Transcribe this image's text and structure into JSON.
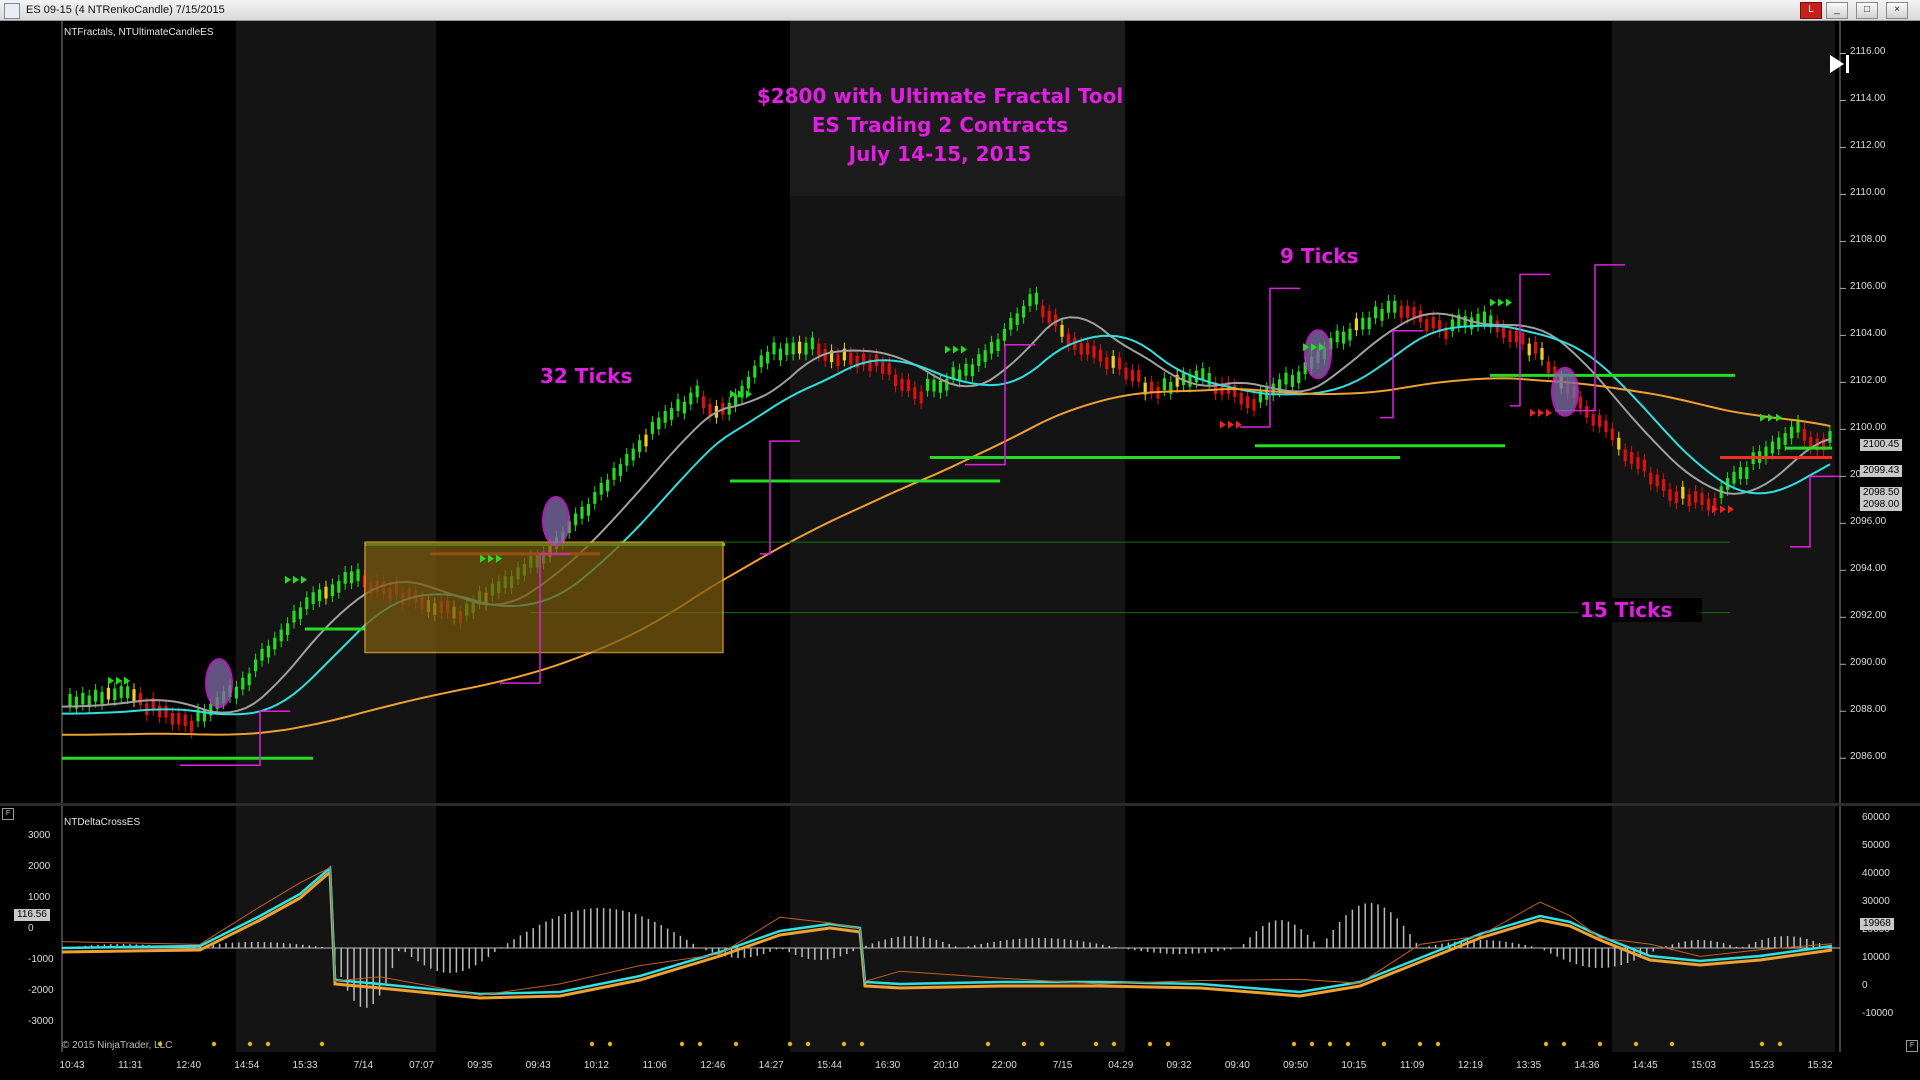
{
  "window": {
    "title": "ES 09-15 (4 NTRenkoCandle)  7/15/2015",
    "buttons": [
      "L",
      "_",
      "□",
      "×"
    ]
  },
  "price_panel": {
    "indicator_label": "NTFractals, NTUltimateCandleES",
    "headline": [
      "$2800 with Ultimate Fractal Tool",
      "ES Trading 2 Contracts",
      "July 14-15, 2015"
    ],
    "annotations": {
      "ticks_32": "32 Ticks",
      "ticks_9": "9 Ticks",
      "ticks_15": "15 Ticks"
    },
    "price_axis": [
      "2116.00",
      "2114.00",
      "2112.00",
      "2110.00",
      "2108.00",
      "2106.00",
      "2104.00",
      "2102.00",
      "2100.00",
      "2098.00",
      "2096.00",
      "2094.00",
      "2092.00",
      "2090.00",
      "2088.00",
      "2086.00"
    ],
    "price_tags": [
      {
        "label": "2100.45",
        "bg": "#c8c8c8",
        "fg": "#000000"
      },
      {
        "label": "2099.43",
        "bg": "#c8c8c8",
        "fg": "#000000"
      },
      {
        "label": "2098.50",
        "bg": "#c8c8c8",
        "fg": "#000000"
      },
      {
        "label": "2098.00",
        "bg": "#c8c8c8",
        "fg": "#000000"
      }
    ],
    "colors": {
      "up_candle": "#22dd22",
      "down_candle": "#dd1111",
      "neutral_candle": "#f0d020",
      "cyan_line": "#30e0e0",
      "orange_line": "#f0a030",
      "gray_line": "#a0a0a0",
      "support_line": "#22dd22",
      "resistance_line": "#ee3322",
      "fractal_line": "#e020e0",
      "box_fill": "#7a5a10",
      "box_border": "#f0b030"
    }
  },
  "indicator_panel": {
    "label": "NTDeltaCrossES",
    "left_axis": [
      "3000",
      "2000",
      "1000",
      "0",
      "-1000",
      "-2000",
      "-3000"
    ],
    "left_tag": "116.56",
    "right_axis": [
      "60000",
      "50000",
      "40000",
      "30000",
      "20000",
      "10000",
      "0",
      "-10000"
    ],
    "right_tag": "19968"
  },
  "time_axis": [
    "10:43",
    "11:31",
    "12:40",
    "14:54",
    "15:33",
    "7/14",
    "07:07",
    "09:35",
    "09:43",
    "10:12",
    "11:06",
    "12:46",
    "14:27",
    "15:44",
    "16:30",
    "20:10",
    "22:00",
    "7/15",
    "04:29",
    "09:32",
    "09:40",
    "09:50",
    "10:15",
    "11:09",
    "12:19",
    "13:35",
    "14:36",
    "14:45",
    "15:03",
    "15:23",
    "15:32"
  ],
  "footer": {
    "copyright": "© 2015 NinjaTrader, LLC"
  }
}
